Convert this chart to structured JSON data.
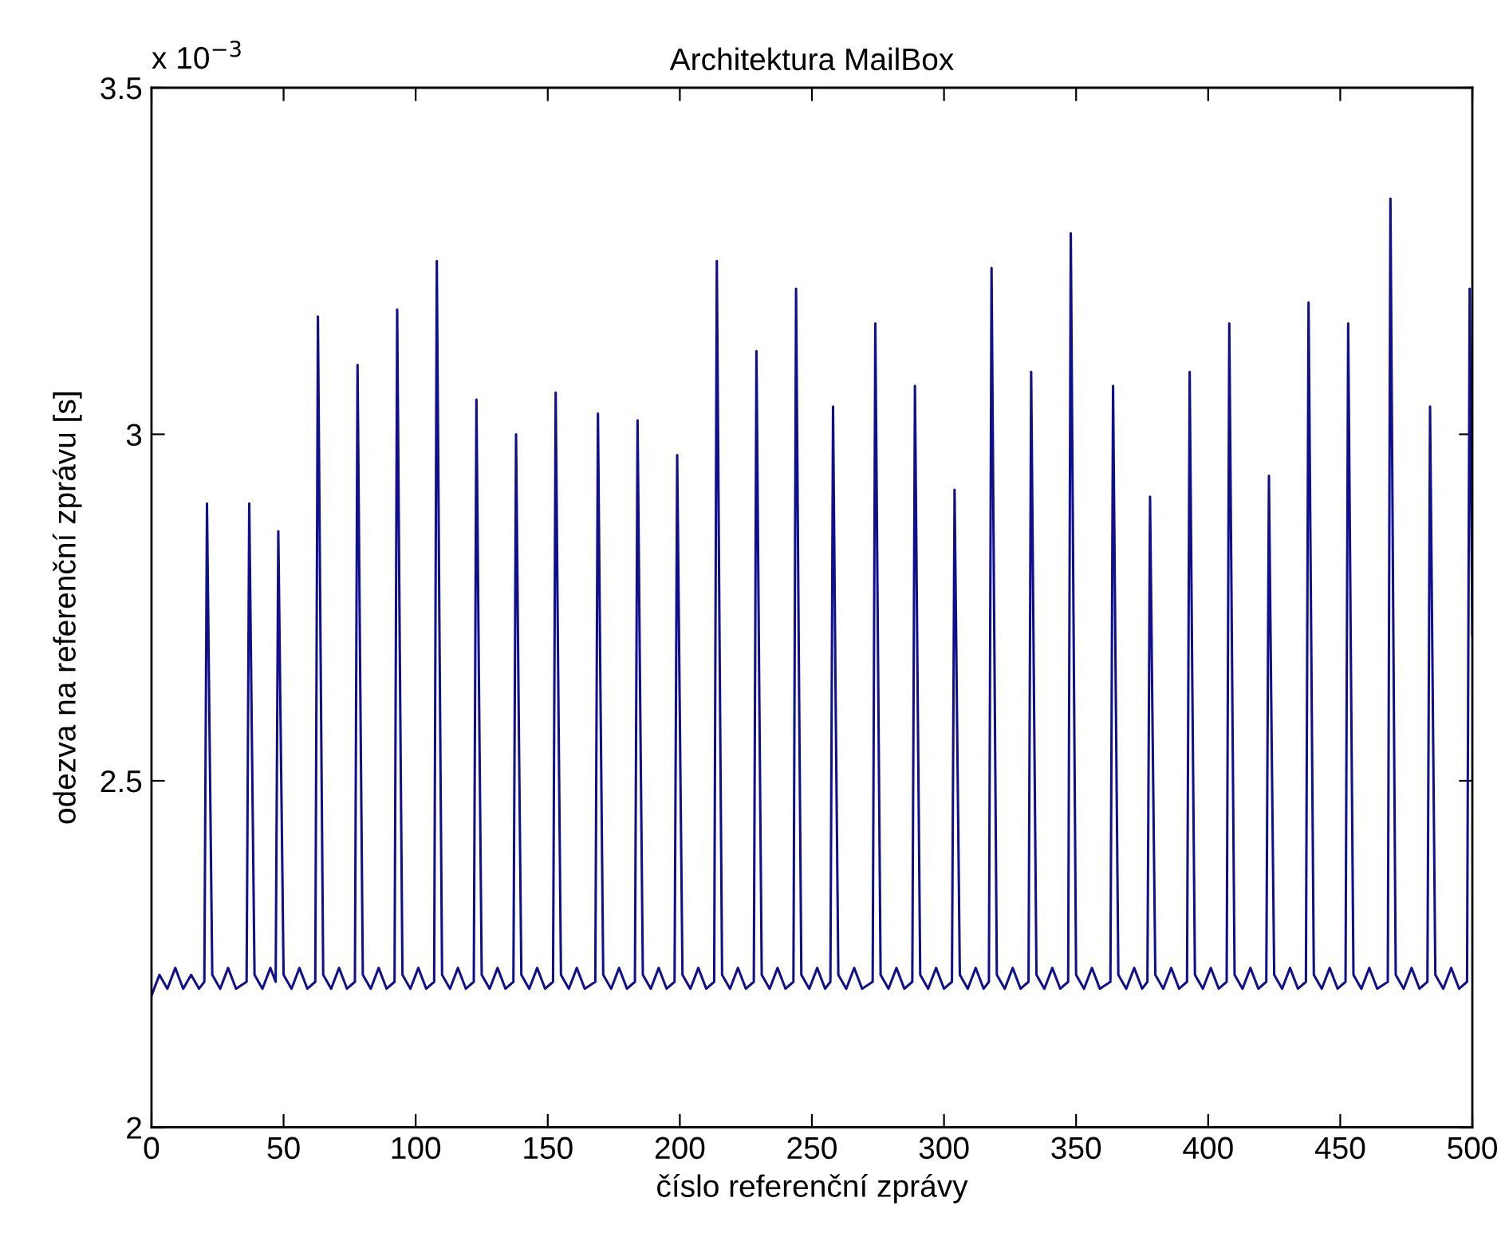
{
  "chart_data": {
    "type": "line",
    "title": "Architektura MailBox",
    "xlabel": "číslo referenční zprávy",
    "ylabel": "odezva na referenční zprávu [s]",
    "annotations": [
      "x 10$^{−3}$"
    ],
    "xlim": [
      0,
      500
    ],
    "xticks": [
      0,
      50,
      100,
      150,
      200,
      250,
      300,
      350,
      400,
      450,
      500
    ],
    "ylim": [
      2,
      3.5
    ],
    "yticks": [
      2,
      2.5,
      3,
      3.5
    ],
    "grid": false,
    "marker": "none",
    "line_style": "solid",
    "series": [
      {
        "color": "#10108f",
        "x": [
          0,
          3,
          6,
          9,
          12,
          15,
          18,
          20,
          21,
          22,
          23,
          26,
          29,
          32,
          36,
          37,
          38,
          39,
          42,
          45,
          47,
          48,
          49,
          50,
          53,
          56,
          59,
          62,
          63,
          64,
          65,
          68,
          71,
          74,
          77,
          78,
          79,
          80,
          83,
          86,
          89,
          92,
          93,
          94,
          95,
          98,
          101,
          104,
          107,
          108,
          109,
          110,
          113,
          116,
          119,
          122,
          123,
          124,
          125,
          128,
          131,
          134,
          137,
          138,
          139,
          140,
          143,
          146,
          149,
          152,
          153,
          154,
          155,
          158,
          161,
          164,
          168,
          169,
          170,
          171,
          174,
          177,
          180,
          183,
          184,
          185,
          186,
          189,
          192,
          195,
          198,
          199,
          200,
          201,
          204,
          207,
          210,
          213,
          214,
          215,
          216,
          219,
          222,
          225,
          228,
          229,
          230,
          231,
          234,
          237,
          240,
          243,
          244,
          245,
          246,
          249,
          252,
          255,
          257,
          258,
          259,
          260,
          263,
          266,
          269,
          273,
          274,
          275,
          276,
          279,
          282,
          285,
          288,
          289,
          290,
          291,
          294,
          297,
          300,
          303,
          304,
          305,
          306,
          309,
          312,
          315,
          317,
          318,
          319,
          320,
          323,
          326,
          329,
          332,
          333,
          334,
          335,
          338,
          341,
          344,
          347,
          348,
          349,
          350,
          353,
          356,
          359,
          363,
          364,
          365,
          366,
          369,
          372,
          375,
          377,
          378,
          379,
          380,
          383,
          386,
          389,
          392,
          393,
          394,
          395,
          398,
          401,
          404,
          407,
          408,
          409,
          410,
          413,
          416,
          419,
          422,
          423,
          424,
          425,
          428,
          431,
          434,
          437,
          438,
          439,
          440,
          443,
          446,
          449,
          452,
          453,
          454,
          455,
          458,
          461,
          464,
          468,
          469,
          470,
          471,
          474,
          477,
          480,
          483,
          484,
          485,
          486,
          489,
          492,
          495,
          498,
          499,
          500
        ],
        "values": [
          2.19,
          2.22,
          2.2,
          2.23,
          2.2,
          2.22,
          2.2,
          2.21,
          2.9,
          2.56,
          2.22,
          2.2,
          2.23,
          2.2,
          2.21,
          2.9,
          2.56,
          2.22,
          2.2,
          2.23,
          2.21,
          2.86,
          2.54,
          2.22,
          2.2,
          2.23,
          2.2,
          2.21,
          3.17,
          2.69,
          2.22,
          2.2,
          2.23,
          2.2,
          2.21,
          3.1,
          2.65,
          2.22,
          2.2,
          2.23,
          2.2,
          2.21,
          3.18,
          2.68,
          2.22,
          2.2,
          2.23,
          2.2,
          2.21,
          3.25,
          2.72,
          2.22,
          2.2,
          2.23,
          2.2,
          2.21,
          3.05,
          2.62,
          2.22,
          2.2,
          2.23,
          2.2,
          2.21,
          3.0,
          2.6,
          2.22,
          2.2,
          2.23,
          2.2,
          2.21,
          3.06,
          2.63,
          2.22,
          2.2,
          2.23,
          2.2,
          2.21,
          3.03,
          2.61,
          2.22,
          2.2,
          2.23,
          2.2,
          2.21,
          3.02,
          2.61,
          2.22,
          2.2,
          2.23,
          2.2,
          2.21,
          2.97,
          2.59,
          2.22,
          2.2,
          2.23,
          2.2,
          2.21,
          3.25,
          2.72,
          2.22,
          2.2,
          2.23,
          2.2,
          2.21,
          3.12,
          2.66,
          2.22,
          2.2,
          2.23,
          2.2,
          2.21,
          3.21,
          2.7,
          2.22,
          2.2,
          2.23,
          2.2,
          2.21,
          3.04,
          2.61,
          2.22,
          2.2,
          2.23,
          2.2,
          2.21,
          3.16,
          2.69,
          2.22,
          2.2,
          2.23,
          2.2,
          2.21,
          3.07,
          2.64,
          2.22,
          2.2,
          2.23,
          2.2,
          2.21,
          2.92,
          2.57,
          2.22,
          2.2,
          2.23,
          2.2,
          2.21,
          3.24,
          2.73,
          2.22,
          2.2,
          2.23,
          2.2,
          2.21,
          3.09,
          2.65,
          2.22,
          2.2,
          2.23,
          2.2,
          2.21,
          3.29,
          2.75,
          2.22,
          2.2,
          2.23,
          2.2,
          2.21,
          3.07,
          2.64,
          2.22,
          2.2,
          2.23,
          2.2,
          2.21,
          2.91,
          2.56,
          2.22,
          2.2,
          2.23,
          2.2,
          2.21,
          3.09,
          2.64,
          2.22,
          2.2,
          2.23,
          2.2,
          2.21,
          3.16,
          2.69,
          2.22,
          2.2,
          2.23,
          2.2,
          2.21,
          2.94,
          2.57,
          2.22,
          2.2,
          2.23,
          2.2,
          2.21,
          3.19,
          2.71,
          2.22,
          2.2,
          2.23,
          2.2,
          2.21,
          3.16,
          2.69,
          2.22,
          2.2,
          2.23,
          2.2,
          2.21,
          3.34,
          2.77,
          2.22,
          2.2,
          2.23,
          2.2,
          2.21,
          3.04,
          2.63,
          2.22,
          2.2,
          2.23,
          2.2,
          2.21,
          3.21,
          2.71
        ]
      }
    ]
  }
}
